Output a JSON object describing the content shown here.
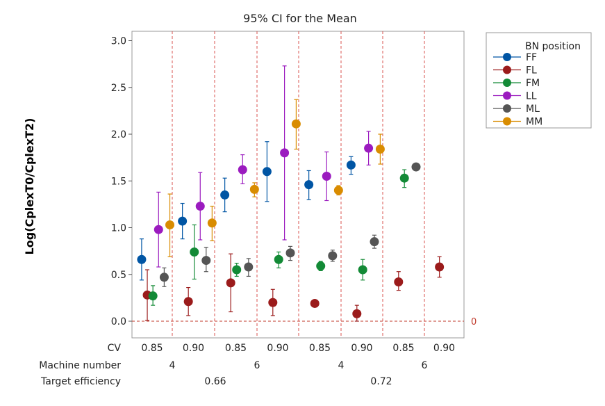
{
  "chart_data": {
    "type": "interval",
    "title": "95% CI for the Mean",
    "ylabel": "Log(CplexT0/CplexT2)",
    "ylim": [
      -0.17,
      3.05
    ],
    "yticks": [
      "0.0",
      "0.5",
      "1.0",
      "1.5",
      "2.0",
      "2.5",
      "3.0"
    ],
    "reference_line": {
      "y": 0,
      "label": "0",
      "color": "#C0392B"
    },
    "legend_title": "BN position",
    "legend_position": "top-right",
    "grouping": {
      "row_labels": {
        "cv": "CV",
        "machine": "Machine number",
        "target": "Target efficiency"
      },
      "cv_labels": [
        "0.85",
        "0.90",
        "0.85",
        "0.90",
        "0.85",
        "0.90",
        "0.85",
        "0.90"
      ],
      "machine_labels": [
        "4",
        "6",
        "4",
        "6"
      ],
      "target_labels": [
        "0.66",
        "0.72"
      ]
    },
    "series": [
      {
        "name": "FF",
        "color": "#0055A4",
        "values": [
          [
            0.66,
            0.44,
            0.88
          ],
          [
            1.07,
            0.88,
            1.26
          ],
          [
            1.35,
            1.17,
            1.53
          ],
          [
            1.6,
            1.28,
            1.92
          ],
          [
            1.46,
            1.3,
            1.61
          ],
          [
            1.67,
            1.57,
            1.76
          ],
          null,
          null
        ]
      },
      {
        "name": "FL",
        "color": "#9B1B1B",
        "values": [
          [
            0.28,
            0.01,
            0.55
          ],
          [
            0.21,
            0.06,
            0.36
          ],
          [
            0.41,
            0.1,
            0.72
          ],
          [
            0.2,
            0.06,
            0.34
          ],
          [
            0.19,
            0.17,
            0.21
          ],
          [
            0.08,
            0.0,
            0.17
          ],
          [
            0.42,
            0.33,
            0.53
          ],
          [
            0.58,
            0.47,
            0.69
          ]
        ]
      },
      {
        "name": "FM",
        "color": "#138A36",
        "values": [
          [
            0.27,
            0.17,
            0.38
          ],
          [
            0.74,
            0.45,
            1.03
          ],
          [
            0.55,
            0.48,
            0.62
          ],
          [
            0.66,
            0.57,
            0.74
          ],
          [
            0.59,
            0.54,
            0.64
          ],
          [
            0.55,
            0.44,
            0.66
          ],
          [
            1.53,
            1.43,
            1.62
          ],
          null
        ]
      },
      {
        "name": "LL",
        "color": "#9B1BBF",
        "values": [
          [
            0.98,
            0.58,
            1.38
          ],
          [
            1.23,
            0.87,
            1.59
          ],
          [
            1.62,
            1.47,
            1.78
          ],
          [
            1.8,
            0.87,
            2.73
          ],
          [
            1.55,
            1.29,
            1.81
          ],
          [
            1.85,
            1.67,
            2.03
          ],
          null,
          null
        ]
      },
      {
        "name": "ML",
        "color": "#555555",
        "values": [
          [
            0.47,
            0.37,
            0.57
          ],
          [
            0.65,
            0.53,
            0.79
          ],
          [
            0.58,
            0.48,
            0.67
          ],
          [
            0.73,
            0.65,
            0.8
          ],
          [
            0.7,
            0.64,
            0.76
          ],
          [
            0.85,
            0.78,
            0.92
          ],
          [
            1.65,
            1.64,
            1.67
          ],
          null
        ]
      },
      {
        "name": "MM",
        "color": "#D98C00",
        "values": [
          [
            1.03,
            0.69,
            1.36
          ],
          [
            1.05,
            0.86,
            1.23
          ],
          [
            1.41,
            1.33,
            1.48
          ],
          [
            2.11,
            1.84,
            2.37
          ],
          [
            1.4,
            1.35,
            1.45
          ],
          [
            1.84,
            1.68,
            2.0
          ],
          null,
          null
        ]
      }
    ],
    "grid": false
  }
}
